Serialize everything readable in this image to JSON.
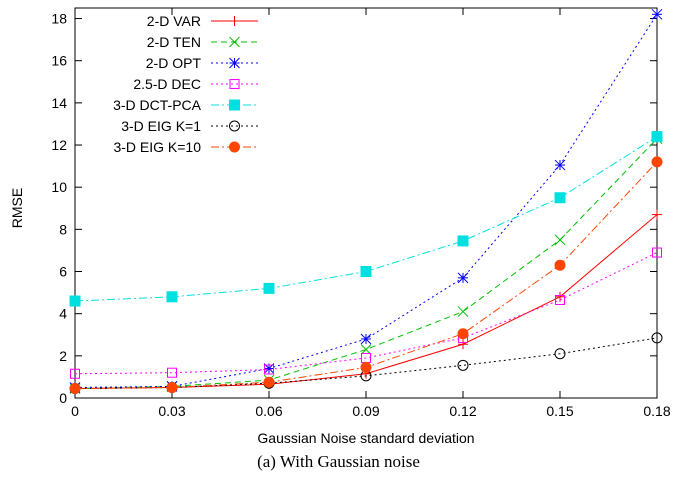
{
  "caption": "(a)  With Gaussian noise",
  "chart_data": {
    "type": "line",
    "title": "",
    "xlabel": "Gaussian Noise standard deviation",
    "ylabel": "RMSE",
    "x": [
      0,
      0.03,
      0.06,
      0.09,
      0.12,
      0.15,
      0.18
    ],
    "x_tick_labels": [
      "0",
      "0.03",
      "0.06",
      "0.09",
      "0.12",
      "0.15",
      "0.18"
    ],
    "xlim": [
      0,
      0.18
    ],
    "ylim": [
      0,
      18.5
    ],
    "y_ticks": [
      0,
      2,
      4,
      6,
      8,
      10,
      12,
      14,
      16,
      18
    ],
    "y_tick_labels": [
      "0",
      "2",
      "4",
      "6",
      "8",
      "10",
      "12",
      "14",
      "16",
      "18"
    ],
    "grid": false,
    "legend_position": "top-left",
    "series": [
      {
        "name": "2-D VAR",
        "color": "#ff0000",
        "marker": "plus",
        "dash": "solid",
        "values": [
          0.45,
          0.5,
          0.65,
          1.15,
          2.55,
          4.8,
          8.7
        ]
      },
      {
        "name": "2-D TEN",
        "color": "#00c000",
        "marker": "cross",
        "dash": "dashed",
        "values": [
          0.45,
          0.55,
          0.85,
          2.3,
          4.1,
          7.5,
          12.3
        ]
      },
      {
        "name": "2-D OPT",
        "color": "#0000ff",
        "marker": "star",
        "dash": "dotted",
        "values": [
          0.5,
          0.55,
          1.4,
          2.8,
          5.7,
          11.05,
          18.2
        ]
      },
      {
        "name": "2.5-D DEC",
        "color": "#ff00ff",
        "marker": "open-square",
        "dash": "dotted",
        "values": [
          1.15,
          1.2,
          1.35,
          1.9,
          2.85,
          4.65,
          6.9
        ]
      },
      {
        "name": "3-D DCT-PCA",
        "color": "#00e0e0",
        "marker": "filled-square",
        "dash": "dash-dot",
        "values": [
          4.6,
          4.8,
          5.2,
          6.0,
          7.45,
          9.5,
          12.4
        ]
      },
      {
        "name": "3-D EIG K=1",
        "color": "#000000",
        "marker": "open-circle",
        "dash": "dotted",
        "values": [
          0.45,
          0.5,
          0.7,
          1.05,
          1.55,
          2.1,
          2.85
        ]
      },
      {
        "name": "3-D EIG K=10",
        "color": "#ff4500",
        "marker": "filled-circle",
        "dash": "dash-dot",
        "values": [
          0.45,
          0.5,
          0.75,
          1.45,
          3.05,
          6.3,
          11.2
        ]
      }
    ]
  }
}
